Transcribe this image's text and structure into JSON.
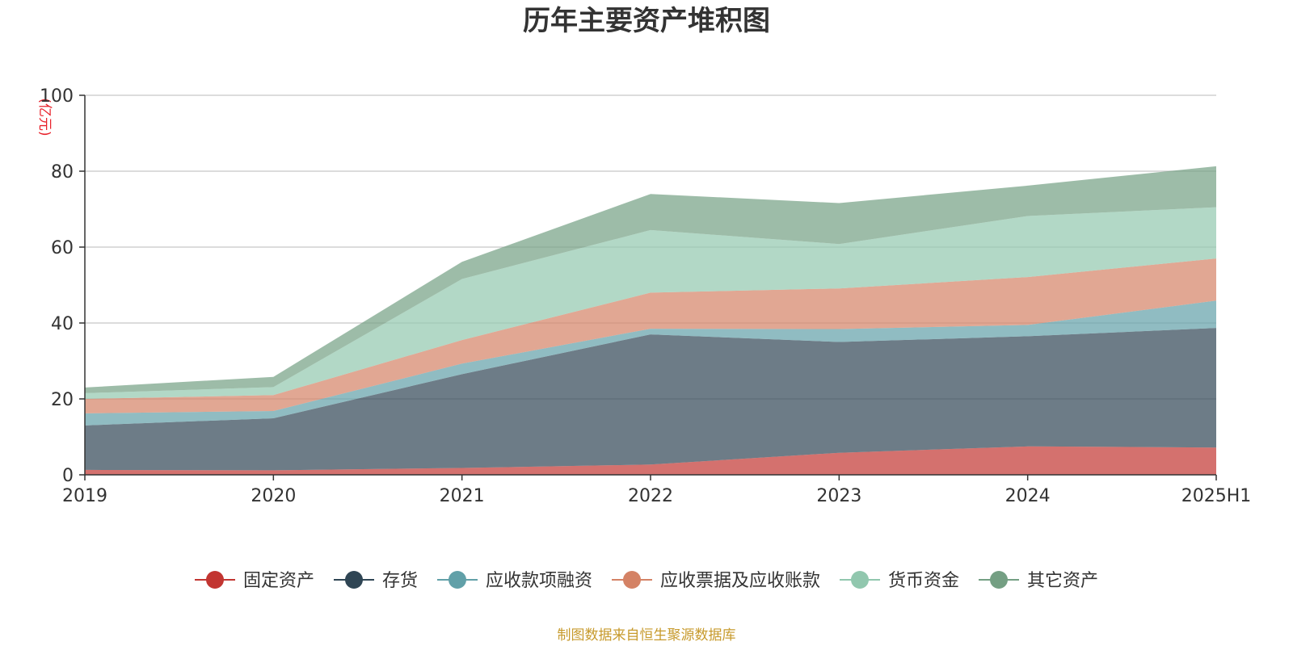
{
  "chart_data": {
    "type": "area",
    "stacked": true,
    "title": "历年主要资产堆积图",
    "unit_label": "(亿元)",
    "x": [
      "2019",
      "2020",
      "2021",
      "2022",
      "2023",
      "2024",
      "2025H1"
    ],
    "ylim": [
      0,
      100
    ],
    "yticks": [
      "0",
      "20",
      "40",
      "60",
      "80",
      "100"
    ],
    "grid": true,
    "legend_position": "bottom",
    "series": [
      {
        "name": "固定资产",
        "color": "#c23531",
        "values": [
          1.3,
          1.2,
          1.8,
          2.7,
          5.8,
          7.5,
          7.2
        ]
      },
      {
        "name": "存货",
        "color": "#2f4554",
        "values": [
          11.7,
          13.7,
          24.7,
          34.3,
          29.2,
          29.0,
          31.5
        ]
      },
      {
        "name": "应收款项融资",
        "color": "#61a0a8",
        "values": [
          3.2,
          1.9,
          2.8,
          1.5,
          3.4,
          3.0,
          7.2
        ]
      },
      {
        "name": "应收票据及应收账款",
        "color": "#d48265",
        "values": [
          3.8,
          4.2,
          6.2,
          9.5,
          10.7,
          12.6,
          11.1
        ]
      },
      {
        "name": "货币资金",
        "color": "#91c7ae",
        "values": [
          1.5,
          2.1,
          16.1,
          16.5,
          11.7,
          16.1,
          13.5
        ]
      },
      {
        "name": "其它资产",
        "color": "#749f83",
        "values": [
          1.5,
          2.7,
          4.5,
          9.5,
          10.8,
          8.0,
          10.8
        ]
      }
    ],
    "source": "制图数据来自恒生聚源数据库"
  }
}
